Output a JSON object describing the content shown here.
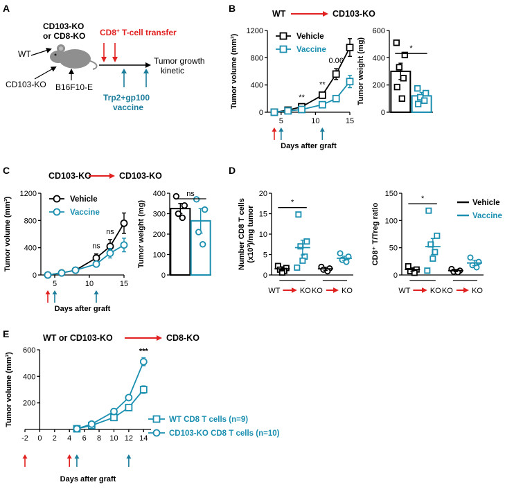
{
  "colors": {
    "vehicle": "#000000",
    "vaccine": "#1b8fb0",
    "red_arrow": "#e0211f",
    "blue_arrow": "#1b7c9c",
    "mouse": "#8f8f8f"
  },
  "icons": [
    "mouse-icon",
    "red-arrow-icon",
    "blue-arrow-icon"
  ],
  "panel_A": {
    "letter": "A",
    "host_line1": "CD103-KO",
    "host_line2": "or CD8-KO",
    "donor_wt": "WT",
    "donor_cd103": "CD103-KO",
    "tumor": "B16F10-E",
    "transfer_label_prefix": "CD8",
    "transfer_label_sup": "+",
    "transfer_label_suffix": " T-cell transfer",
    "outcome_line1": "Tumor growth",
    "outcome_line2": "kinetic",
    "vaccine_line1": "Trp2+gp100",
    "vaccine_line2": "vaccine"
  },
  "panel_B": {
    "letter": "B",
    "title_left": "WT",
    "title_right": "CD103-KO",
    "growth_ylabel": "Tumor volume (mm³)",
    "growth_xlabel": "Days after graft",
    "growth_xticks": [
      "5",
      "10",
      "15"
    ],
    "growth_yticks": [
      "0",
      "400",
      "800",
      "1200"
    ],
    "legend": [
      "Vehicle",
      "Vaccine"
    ],
    "significance": [
      {
        "day": 8,
        "text": "**"
      },
      {
        "day": 11,
        "text": "**"
      },
      {
        "day": 13,
        "text": "0.06"
      }
    ],
    "weight_ylabel": "Tumor weight (mg)",
    "weight_yticks": [
      "0",
      "200",
      "400",
      "600"
    ],
    "weight_star": "*"
  },
  "panel_C": {
    "letter": "C",
    "title_left": "CD103-KO",
    "title_right": "CD103-KO",
    "growth_ylabel": "Tumor volume (mm³)",
    "growth_xlabel": "Days after graft",
    "growth_xticks": [
      "5",
      "10",
      "15"
    ],
    "growth_yticks": [
      "0",
      "400",
      "800",
      "1200"
    ],
    "legend": [
      "Vehicle",
      "Vaccine"
    ],
    "significance": [
      {
        "day": 11,
        "text": "ns"
      },
      {
        "day": 13,
        "text": "ns"
      }
    ],
    "weight_ylabel": "Tumor weight (mg)",
    "weight_yticks": [
      "0",
      "100",
      "200",
      "300",
      "400"
    ],
    "weight_ns": "ns"
  },
  "panel_D": {
    "letter": "D",
    "left_ylabel_line1": "Number CD8 T cells",
    "left_ylabel_line2": "(x10³)/mg tumor",
    "left_yticks": [
      "0",
      "5",
      "10",
      "15",
      "20"
    ],
    "left_star": "*",
    "right_ylabel": "CD8⁺ T/Treg ratio",
    "right_yticks": [
      "0",
      "50",
      "100",
      "150"
    ],
    "right_star": "*",
    "group_labels": [
      {
        "from": "WT",
        "to": "KO"
      },
      {
        "from": "KO",
        "to": "KO"
      }
    ],
    "legend": [
      "Vehicle",
      "Vaccine"
    ]
  },
  "panel_E": {
    "letter": "E",
    "title_left": "WT or CD103-KO",
    "title_right": "CD8-KO",
    "ylabel": "Tumor volume (mm³)",
    "xlabel": "Days after graft",
    "xticks": [
      "-2",
      "0",
      "2",
      "4",
      "6",
      "8",
      "10",
      "12",
      "14"
    ],
    "yticks": [
      "200",
      "400",
      "600"
    ],
    "significance": "***",
    "legend": [
      "WT CD8 T cells (n=9)",
      "CD103-KO CD8 T cells (n=10)"
    ]
  },
  "chart_data": [
    {
      "id": "B-growth",
      "type": "line",
      "title": "WT → CD103-KO",
      "xlabel": "Days after graft",
      "ylabel": "Tumor volume (mm³)",
      "xlim": [
        3,
        15
      ],
      "ylim": [
        0,
        1200
      ],
      "series": [
        {
          "name": "Vehicle",
          "x": [
            4,
            6,
            8,
            11,
            13,
            15
          ],
          "y": [
            0,
            30,
            80,
            250,
            560,
            950
          ],
          "err": [
            0,
            10,
            20,
            40,
            80,
            130
          ]
        },
        {
          "name": "Vaccine",
          "x": [
            4,
            6,
            8,
            11,
            13,
            15
          ],
          "y": [
            0,
            20,
            40,
            110,
            200,
            450
          ],
          "err": [
            0,
            8,
            12,
            25,
            40,
            90
          ]
        }
      ],
      "transfer_days": [
        4
      ],
      "vaccine_days": [
        5,
        11
      ]
    },
    {
      "id": "B-weight",
      "type": "bar",
      "ylabel": "Tumor weight (mg)",
      "ylim": [
        0,
        600
      ],
      "categories": [
        "Vehicle",
        "Vaccine"
      ],
      "values": [
        300,
        120
      ],
      "sem": [
        60,
        25
      ],
      "points": [
        [
          510,
          420,
          330,
          250,
          185,
          100
        ],
        [
          175,
          140,
          110,
          85,
          60
        ]
      ]
    },
    {
      "id": "C-growth",
      "type": "line",
      "title": "CD103-KO → CD103-KO",
      "xlabel": "Days after graft",
      "ylabel": "Tumor volume (mm³)",
      "xlim": [
        3,
        15
      ],
      "ylim": [
        0,
        1200
      ],
      "series": [
        {
          "name": "Vehicle",
          "x": [
            4,
            6,
            8,
            11,
            13,
            15
          ],
          "y": [
            0,
            30,
            70,
            250,
            420,
            760
          ],
          "err": [
            0,
            10,
            20,
            60,
            100,
            150
          ]
        },
        {
          "name": "Vaccine",
          "x": [
            4,
            6,
            8,
            11,
            13,
            15
          ],
          "y": [
            0,
            30,
            70,
            160,
            320,
            440
          ],
          "err": [
            0,
            10,
            20,
            40,
            70,
            100
          ]
        }
      ],
      "transfer_days": [
        4
      ],
      "vaccine_days": [
        5,
        11
      ]
    },
    {
      "id": "C-weight",
      "type": "bar",
      "ylabel": "Tumor weight (mg)",
      "ylim": [
        0,
        400
      ],
      "categories": [
        "Vehicle",
        "Vaccine"
      ],
      "values": [
        325,
        265
      ],
      "sem": [
        25,
        60
      ],
      "points": [
        [
          385,
          340,
          300,
          280
        ],
        [
          370,
          320,
          210,
          150
        ]
      ]
    },
    {
      "id": "D-count",
      "type": "scatter",
      "ylabel": "Number CD8 T cells (x10³)/mg tumor",
      "ylim": [
        0,
        20
      ],
      "groups": [
        {
          "name": "WT→KO Vehicle",
          "series": "Vehicle",
          "mean": 1.5,
          "sem": 0.5,
          "points": [
            2.2,
            1.7,
            1.3,
            1.0,
            0.6
          ]
        },
        {
          "name": "WT→KO Vaccine",
          "series": "Vaccine",
          "mean": 6.7,
          "sem": 1.8,
          "points": [
            14.8,
            8.2,
            7.0,
            4.5,
            3.5,
            1.8
          ]
        },
        {
          "name": "KO→KO Vehicle",
          "series": "Vehicle",
          "mean": 1.5,
          "sem": 0.4,
          "points": [
            2.0,
            1.6,
            1.3,
            0.9
          ]
        },
        {
          "name": "KO→KO Vaccine",
          "series": "Vaccine",
          "mean": 4.1,
          "sem": 0.5,
          "points": [
            5.3,
            4.5,
            3.7,
            3.2
          ]
        }
      ]
    },
    {
      "id": "D-ratio",
      "type": "scatter",
      "ylabel": "CD8⁺ T/Treg ratio",
      "ylim": [
        0,
        150
      ],
      "groups": [
        {
          "name": "WT→KO Vehicle",
          "series": "Vehicle",
          "mean": 10,
          "sem": 3,
          "points": [
            16,
            10,
            7,
            4
          ]
        },
        {
          "name": "WT→KO Vaccine",
          "series": "Vaccine",
          "mean": 52,
          "sem": 15,
          "points": [
            118,
            72,
            56,
            42,
            30,
            8
          ]
        },
        {
          "name": "KO→KO Vehicle",
          "series": "Vehicle",
          "mean": 8,
          "sem": 2,
          "points": [
            11,
            8,
            6,
            5
          ]
        },
        {
          "name": "KO→KO Vaccine",
          "series": "Vaccine",
          "mean": 22,
          "sem": 5,
          "points": [
            32,
            24,
            18,
            14
          ]
        }
      ]
    },
    {
      "id": "E-growth",
      "type": "line",
      "title": "WT or CD103-KO → CD8-KO",
      "xlabel": "Days after graft",
      "ylabel": "Tumor volume (mm³)",
      "xlim": [
        -2,
        15
      ],
      "ylim": [
        0,
        600
      ],
      "series": [
        {
          "name": "WT CD8 T cells (n=9)",
          "marker": "square",
          "x": [
            5,
            7,
            10,
            12,
            14
          ],
          "y": [
            5,
            30,
            90,
            165,
            300
          ],
          "err": [
            3,
            8,
            12,
            20,
            28
          ]
        },
        {
          "name": "CD103-KO CD8 T cells (n=10)",
          "marker": "circle",
          "x": [
            5,
            7,
            10,
            12,
            14
          ],
          "y": [
            5,
            40,
            135,
            240,
            510
          ],
          "err": [
            3,
            10,
            15,
            15,
            30
          ]
        }
      ],
      "transfer_days": [
        -2,
        4
      ],
      "vaccine_days": [
        5,
        12
      ]
    }
  ]
}
